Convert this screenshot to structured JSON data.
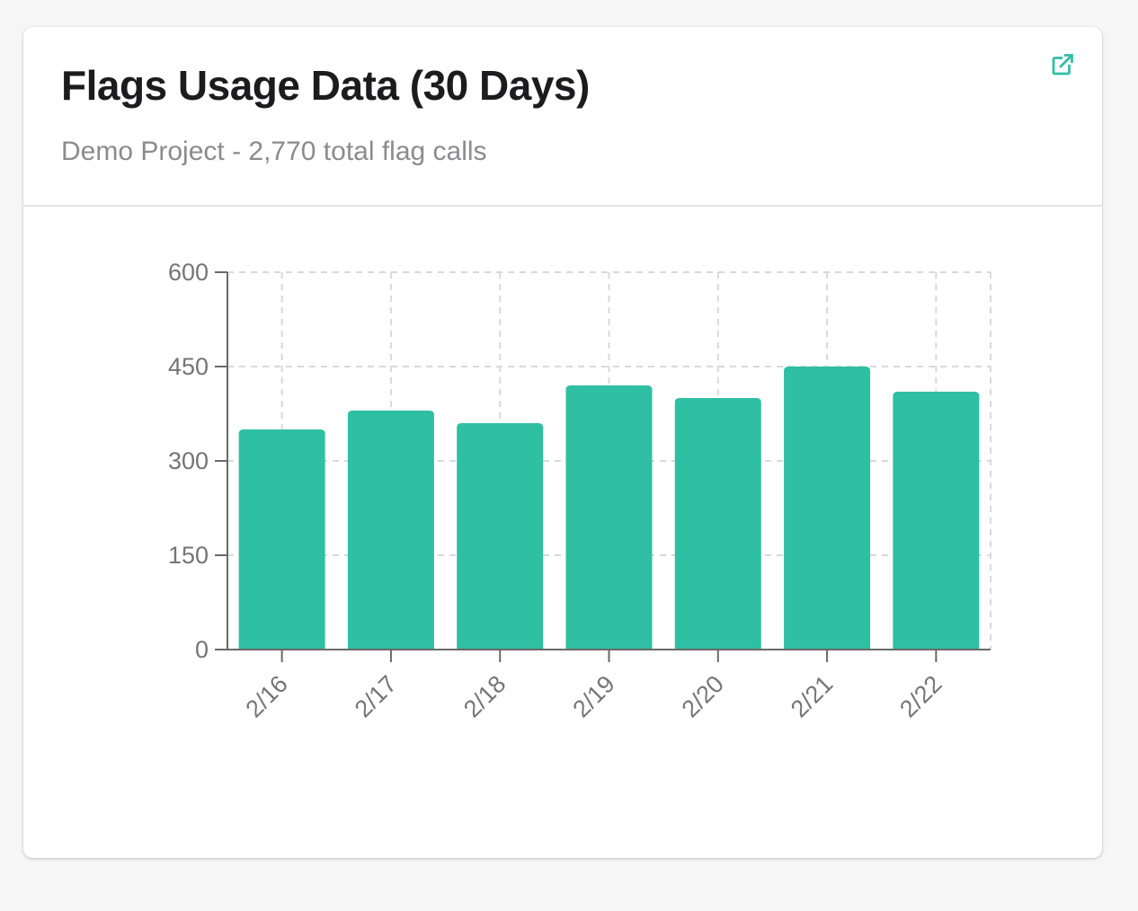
{
  "page": {
    "background_color": "#f6f6f7"
  },
  "card": {
    "title": "Flags Usage Data (30 Days)",
    "subtitle": "Demo Project - 2,770 total flag calls",
    "total_flag_calls": "2,770",
    "project_name": "Demo Project",
    "accent_color": "#2fbfa2",
    "expand_icon": "external-link-icon"
  },
  "chart_data": {
    "type": "bar",
    "title": "",
    "xlabel": "",
    "ylabel": "",
    "categories": [
      "2/16",
      "2/17",
      "2/18",
      "2/19",
      "2/20",
      "2/21",
      "2/22"
    ],
    "values": [
      350,
      380,
      360,
      420,
      400,
      450,
      410
    ],
    "total": 2770,
    "ylim": [
      0,
      600
    ],
    "yticks": [
      0,
      150,
      300,
      450,
      600
    ],
    "grid": "dashed",
    "legend": "none",
    "x_label_rotation": -45,
    "bar_color": "#2fbfa2",
    "grid_color": "#d9d9d9",
    "axis_color": "#696969",
    "label_color": "#757575"
  }
}
